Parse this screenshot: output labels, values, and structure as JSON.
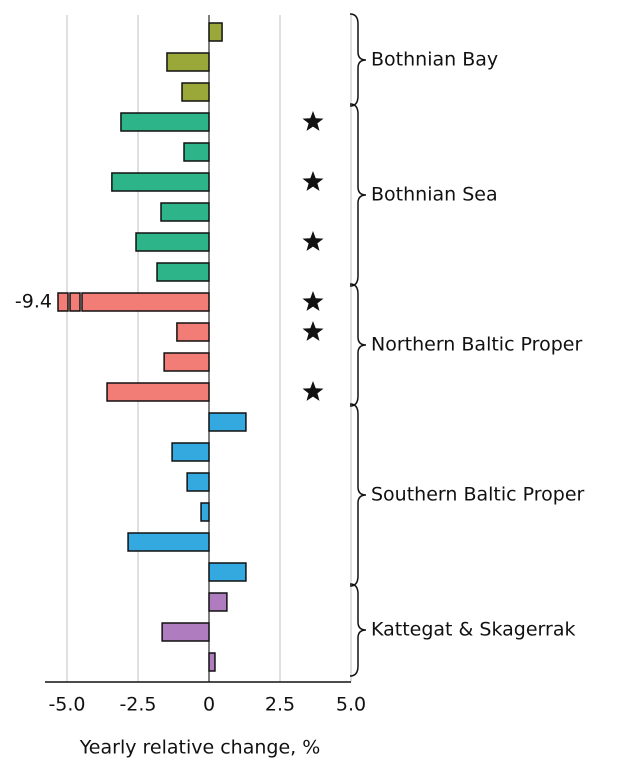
{
  "chart_data": {
    "type": "bar",
    "orientation": "horizontal",
    "xlabel": "Yearly relative change, %",
    "xlim": [
      -5,
      5
    ],
    "xticks": [
      {
        "value": -5,
        "label": "-5.0"
      },
      {
        "value": -2.5,
        "label": "-2.5"
      },
      0,
      {
        "value": 2.5,
        "label": "2.5"
      },
      {
        "value": 5,
        "label": "5.0"
      }
    ],
    "grid": true,
    "groups": [
      {
        "name": "Bothnian Bay",
        "color": "#9aa83a",
        "values": [
          0.46,
          -1.48,
          -0.95
        ],
        "significant": [
          false,
          false,
          false
        ],
        "value_labels": [
          null,
          null,
          null
        ]
      },
      {
        "name": "Bothnian Sea",
        "color": "#2db589",
        "values": [
          -3.1,
          -0.88,
          -3.42,
          -1.69,
          -2.57,
          -1.83
        ],
        "significant": [
          true,
          false,
          true,
          false,
          true,
          false
        ],
        "value_labels": [
          null,
          null,
          null,
          null,
          null,
          null
        ]
      },
      {
        "name": "Northern Baltic Proper",
        "color": "#f27d76",
        "values": [
          -9.4,
          -1.13,
          -1.58,
          -3.59
        ],
        "significant": [
          true,
          true,
          false,
          true
        ],
        "value_labels": [
          "-9.4",
          null,
          null,
          null
        ]
      },
      {
        "name": "Southern Baltic Proper",
        "color": "#33a9e0",
        "values": [
          1.3,
          -1.3,
          -0.77,
          -0.28,
          -2.85,
          1.3
        ],
        "significant": [
          false,
          false,
          false,
          false,
          false,
          false
        ],
        "value_labels": [
          null,
          null,
          null,
          null,
          null,
          null
        ]
      },
      {
        "name": "Kattegat & Skagerrak",
        "color": "#b07cc0",
        "values": [
          0.63,
          -1.65,
          0.21
        ],
        "significant": [
          false,
          false,
          false
        ],
        "value_labels": [
          null,
          null,
          null
        ]
      }
    ]
  }
}
